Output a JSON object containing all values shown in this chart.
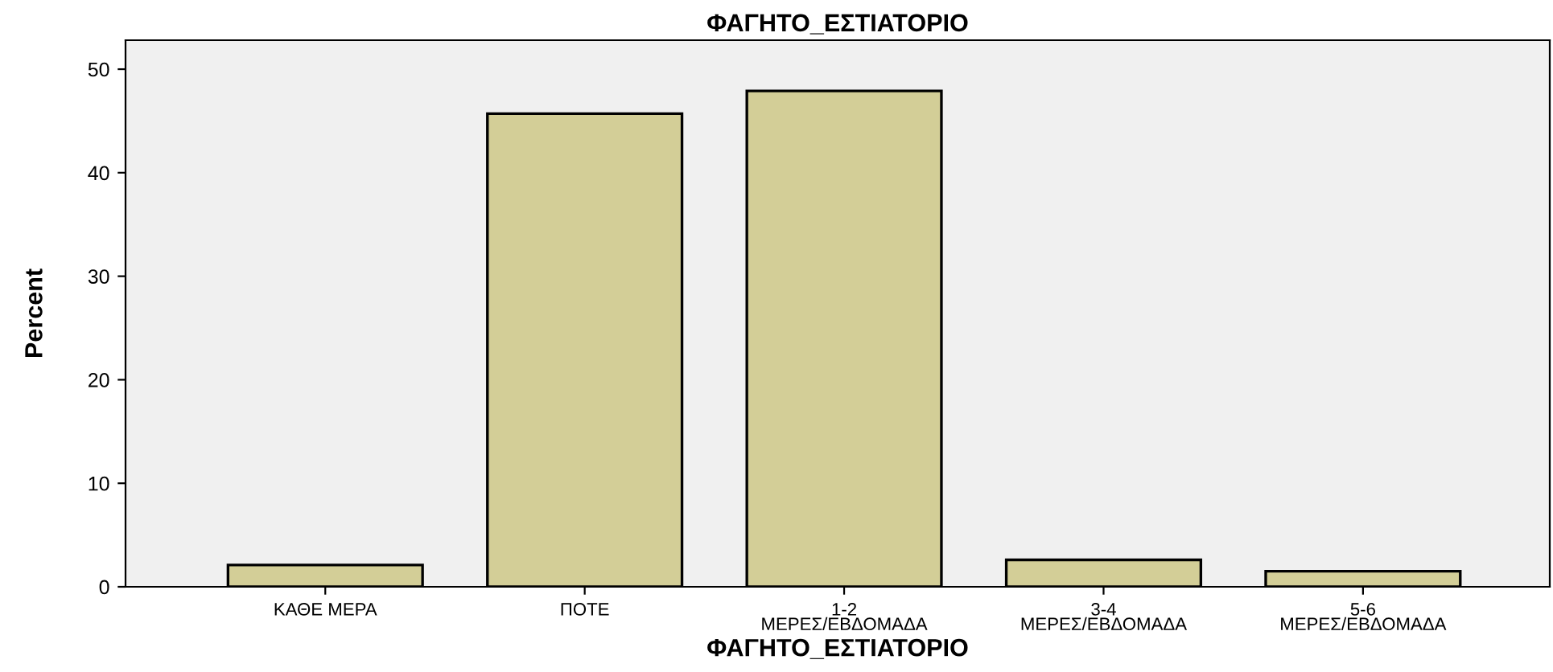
{
  "chart_data": {
    "type": "bar",
    "title": "ΦΑΓΗΤΟ_ΕΣΤΙΑΤΟΡΙΟ",
    "xlabel": "ΦΑΓΗΤΟ_ΕΣΤΙΑΤΟΡΙΟ",
    "ylabel": "Percent",
    "categories": [
      "ΚΑΘΕ ΜΕΡΑ",
      "ΠΟΤΕ",
      "1-2\nΜΕΡΕΣ/ΕΒΔΟΜΑΔΑ",
      "3-4\nΜΕΡΕΣ/ΕΒΔΟΜΑΔΑ",
      "5-6\nΜΕΡΕΣ/ΕΒΔΟΜΑΔΑ"
    ],
    "values": [
      2.1,
      45.7,
      47.9,
      2.6,
      1.5
    ],
    "color": "#d3ce97",
    "ylim": [
      0,
      52.8
    ],
    "yticks": [
      0,
      10,
      20,
      30,
      40,
      50
    ],
    "grid": false
  }
}
